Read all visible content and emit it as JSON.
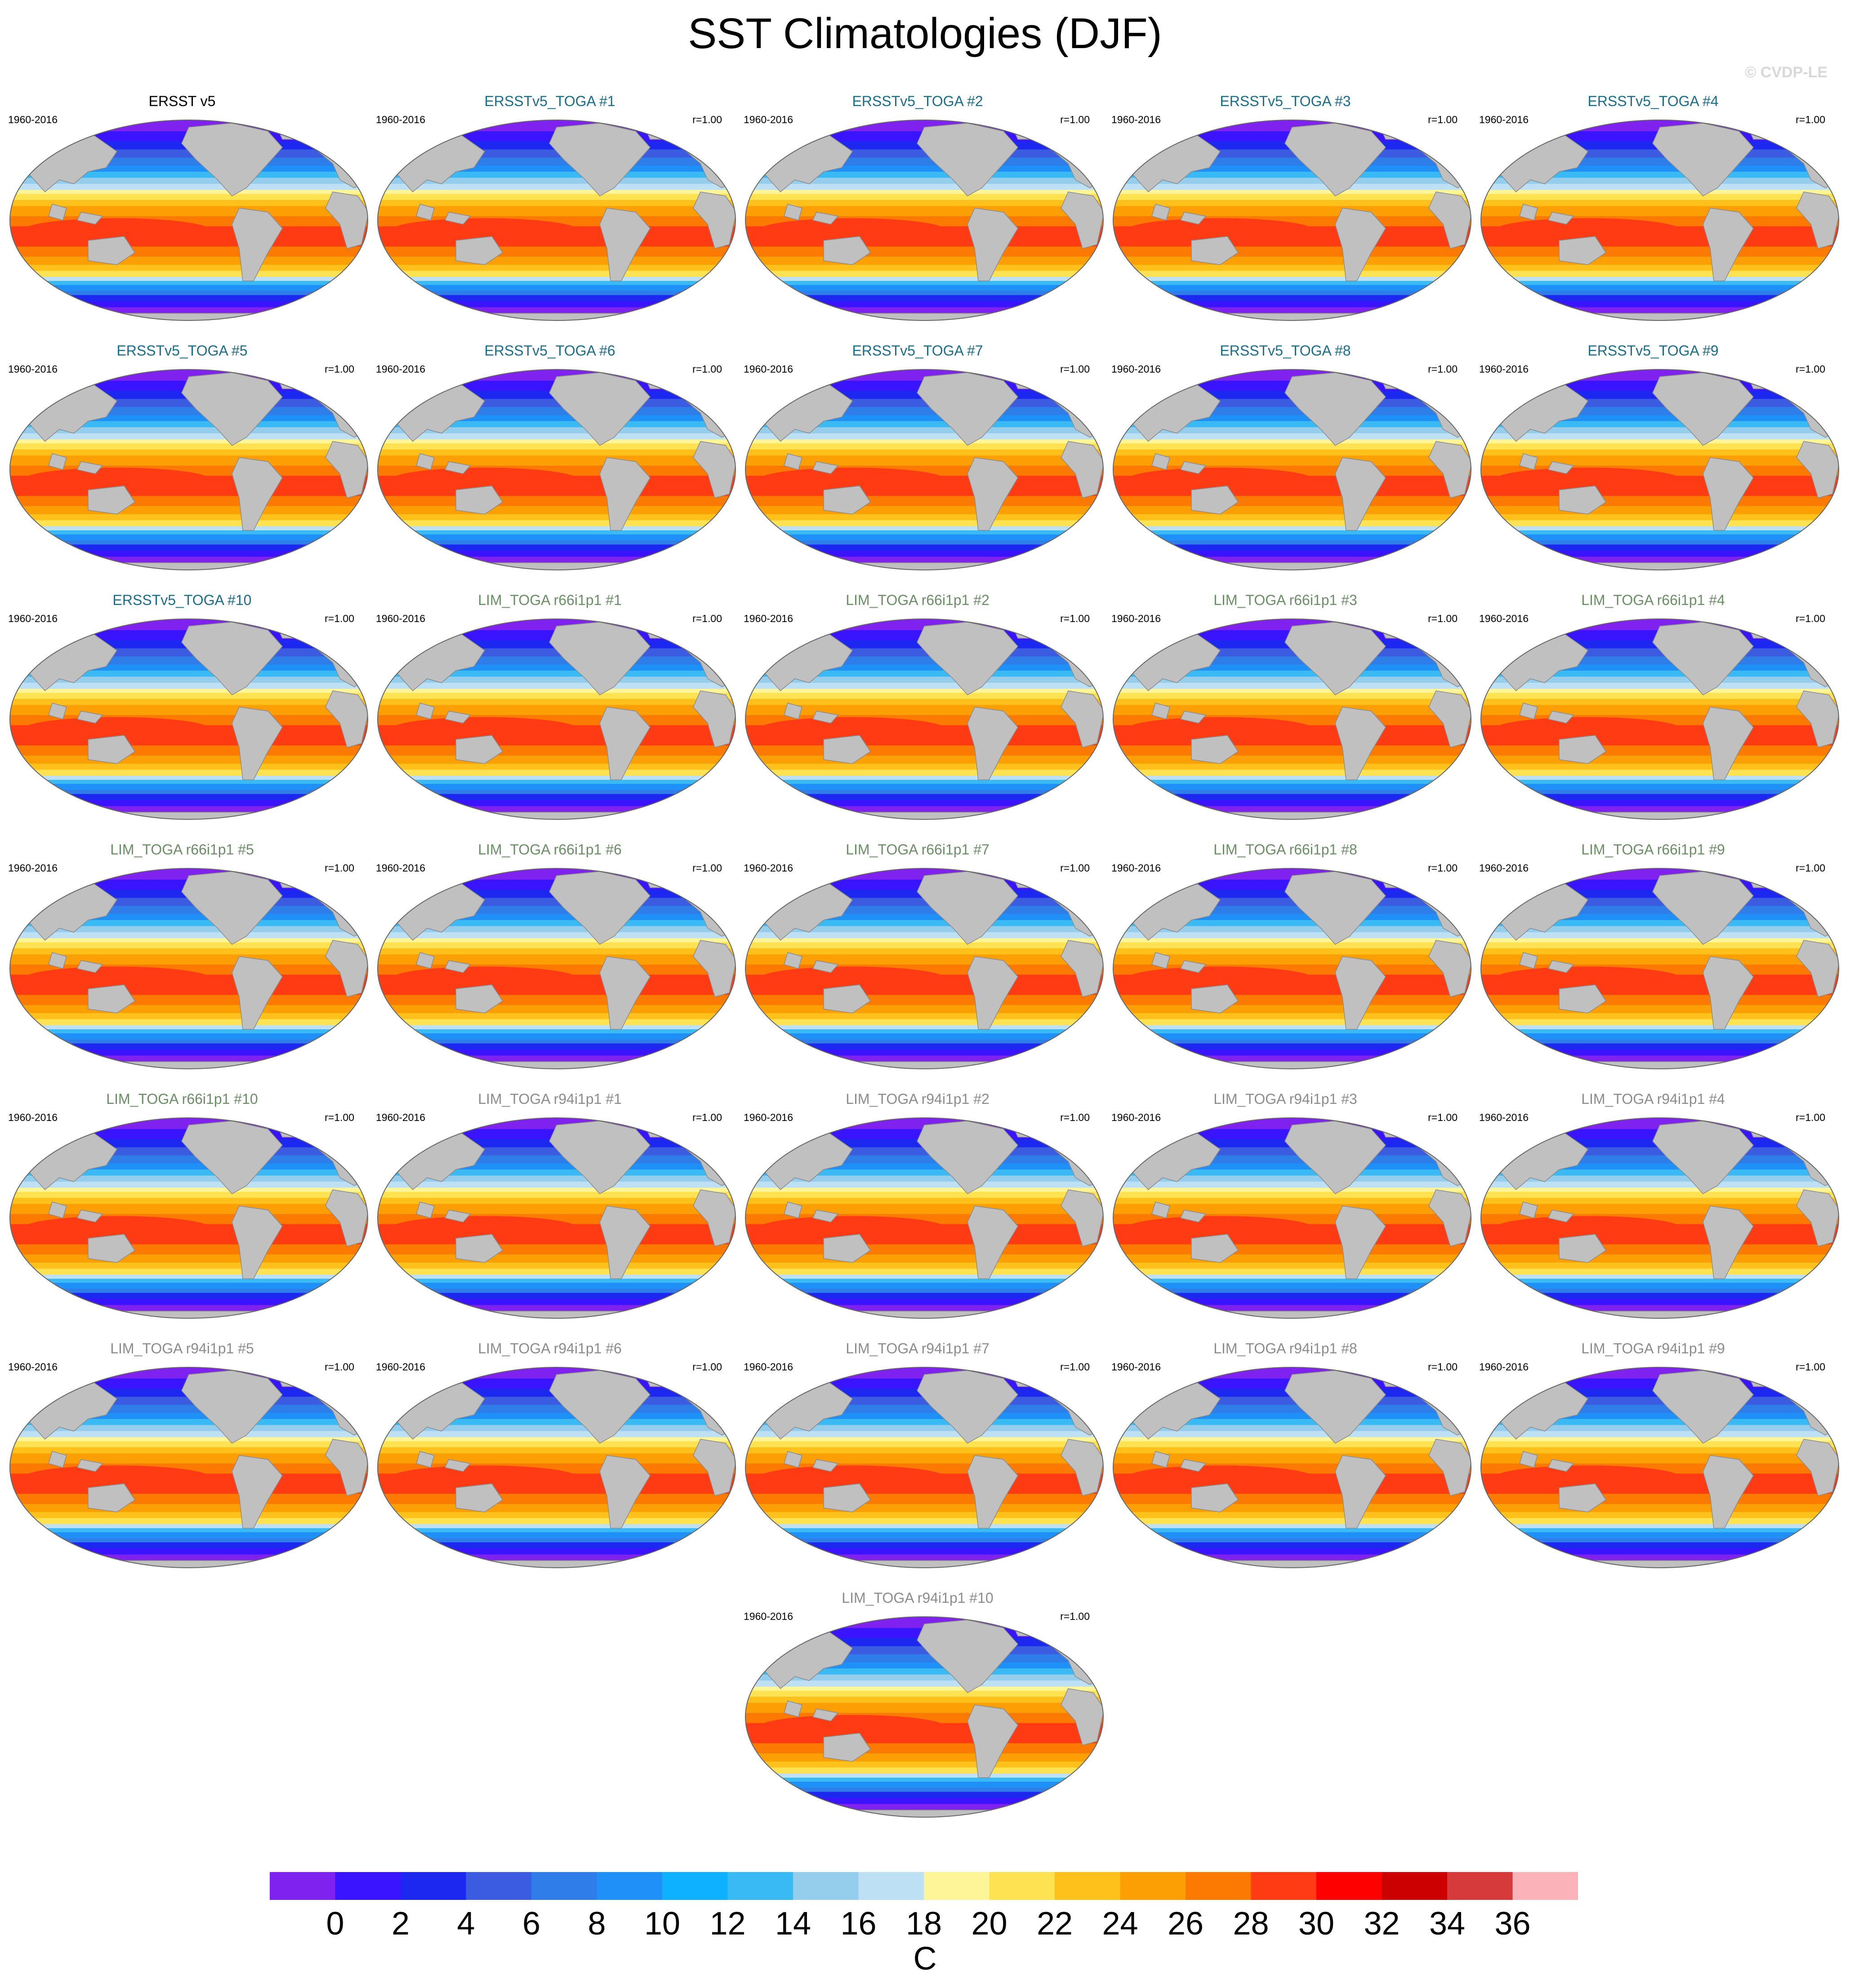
{
  "title": "SST Climatologies (DJF)",
  "watermark": "© CVDP-LE",
  "chart_data": {
    "type": "heatmap",
    "title": "SST Climatologies (DJF)",
    "colormap_levels": [
      0,
      2,
      4,
      6,
      8,
      10,
      12,
      14,
      16,
      18,
      20,
      22,
      24,
      26,
      28,
      30,
      32,
      34,
      36
    ],
    "colorbar_colors": [
      "#7f22f0",
      "#3a13ff",
      "#1c28f0",
      "#3b5be0",
      "#2f7de8",
      "#1f90f8",
      "#0db1ff",
      "#39baf5",
      "#95cdec",
      "#bde0f5",
      "#fdf597",
      "#fee252",
      "#fec11c",
      "#fc9f05",
      "#fc7a02",
      "#ff3b13",
      "#ff0000",
      "#cc0000",
      "#d63a3a",
      "#fbb2b8"
    ],
    "colorbar_unit": "C",
    "panels": [
      {
        "title": "ERSST v5",
        "years": "1960-2016",
        "r": "",
        "color": "#000000"
      },
      {
        "title": "ERSSTv5_TOGA #1",
        "years": "1960-2016",
        "r": "r=1.00",
        "color": "#1a6e8c"
      },
      {
        "title": "ERSSTv5_TOGA #2",
        "years": "1960-2016",
        "r": "r=1.00",
        "color": "#1a6e8c"
      },
      {
        "title": "ERSSTv5_TOGA #3",
        "years": "1960-2016",
        "r": "r=1.00",
        "color": "#1a6e8c"
      },
      {
        "title": "ERSSTv5_TOGA #4",
        "years": "1960-2016",
        "r": "r=1.00",
        "color": "#1a6e8c"
      },
      {
        "title": "ERSSTv5_TOGA #5",
        "years": "1960-2016",
        "r": "r=1.00",
        "color": "#1a6e8c"
      },
      {
        "title": "ERSSTv5_TOGA #6",
        "years": "1960-2016",
        "r": "r=1.00",
        "color": "#1a6e8c"
      },
      {
        "title": "ERSSTv5_TOGA #7",
        "years": "1960-2016",
        "r": "r=1.00",
        "color": "#1a6e8c"
      },
      {
        "title": "ERSSTv5_TOGA #8",
        "years": "1960-2016",
        "r": "r=1.00",
        "color": "#1a6e8c"
      },
      {
        "title": "ERSSTv5_TOGA #9",
        "years": "1960-2016",
        "r": "r=1.00",
        "color": "#1a6e8c"
      },
      {
        "title": "ERSSTv5_TOGA #10",
        "years": "1960-2016",
        "r": "r=1.00",
        "color": "#1a6e8c"
      },
      {
        "title": "LIM_TOGA r66i1p1 #1",
        "years": "1960-2016",
        "r": "r=1.00",
        "color": "#6a8f64"
      },
      {
        "title": "LIM_TOGA r66i1p1 #2",
        "years": "1960-2016",
        "r": "r=1.00",
        "color": "#6a8f64"
      },
      {
        "title": "LIM_TOGA r66i1p1 #3",
        "years": "1960-2016",
        "r": "r=1.00",
        "color": "#6a8f64"
      },
      {
        "title": "LIM_TOGA r66i1p1 #4",
        "years": "1960-2016",
        "r": "r=1.00",
        "color": "#6a8f64"
      },
      {
        "title": "LIM_TOGA r66i1p1 #5",
        "years": "1960-2016",
        "r": "r=1.00",
        "color": "#6a8f64"
      },
      {
        "title": "LIM_TOGA r66i1p1 #6",
        "years": "1960-2016",
        "r": "r=1.00",
        "color": "#6a8f64"
      },
      {
        "title": "LIM_TOGA r66i1p1 #7",
        "years": "1960-2016",
        "r": "r=1.00",
        "color": "#6a8f64"
      },
      {
        "title": "LIM_TOGA r66i1p1 #8",
        "years": "1960-2016",
        "r": "r=1.00",
        "color": "#6a8f64"
      },
      {
        "title": "LIM_TOGA r66i1p1 #9",
        "years": "1960-2016",
        "r": "r=1.00",
        "color": "#6a8f64"
      },
      {
        "title": "LIM_TOGA r66i1p1 #10",
        "years": "1960-2016",
        "r": "r=1.00",
        "color": "#6a8f64"
      },
      {
        "title": "LIM_TOGA r94i1p1 #1",
        "years": "1960-2016",
        "r": "r=1.00",
        "color": "#8c8c8c"
      },
      {
        "title": "LIM_TOGA r94i1p1 #2",
        "years": "1960-2016",
        "r": "r=1.00",
        "color": "#8c8c8c"
      },
      {
        "title": "LIM_TOGA r94i1p1 #3",
        "years": "1960-2016",
        "r": "r=1.00",
        "color": "#8c8c8c"
      },
      {
        "title": "LIM_TOGA r94i1p1 #4",
        "years": "1960-2016",
        "r": "r=1.00",
        "color": "#8c8c8c"
      },
      {
        "title": "LIM_TOGA r94i1p1 #5",
        "years": "1960-2016",
        "r": "r=1.00",
        "color": "#8c8c8c"
      },
      {
        "title": "LIM_TOGA r94i1p1 #6",
        "years": "1960-2016",
        "r": "r=1.00",
        "color": "#8c8c8c"
      },
      {
        "title": "LIM_TOGA r94i1p1 #7",
        "years": "1960-2016",
        "r": "r=1.00",
        "color": "#8c8c8c"
      },
      {
        "title": "LIM_TOGA r94i1p1 #8",
        "years": "1960-2016",
        "r": "r=1.00",
        "color": "#8c8c8c"
      },
      {
        "title": "LIM_TOGA r94i1p1 #9",
        "years": "1960-2016",
        "r": "r=1.00",
        "color": "#8c8c8c"
      },
      {
        "title": "LIM_TOGA r94i1p1 #10",
        "years": "1960-2016",
        "r": "r=1.00",
        "color": "#8c8c8c"
      }
    ]
  }
}
